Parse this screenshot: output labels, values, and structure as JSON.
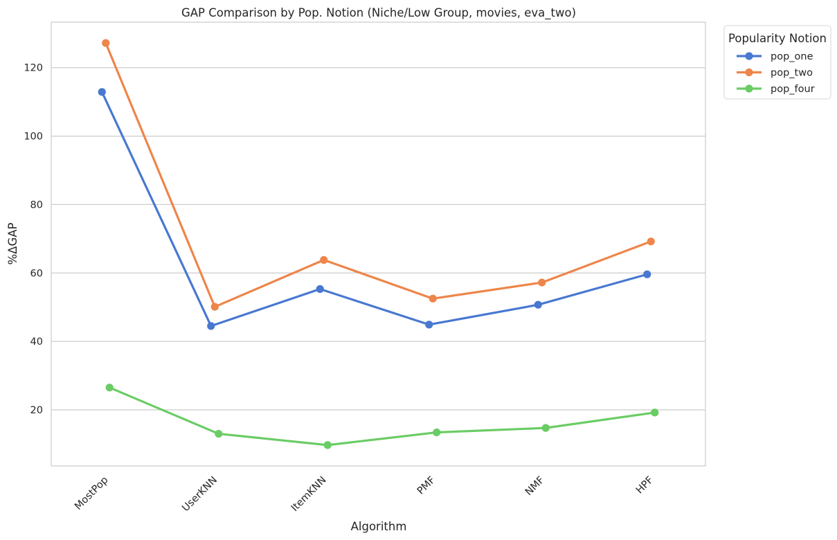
{
  "chart_data": {
    "type": "line",
    "title": "GAP Comparison by Pop. Notion (Niche/Low Group, movies, eva_two)",
    "xlabel": "Algorithm",
    "ylabel": "%ΔGAP",
    "categories": [
      "MostPop",
      "UserKNN",
      "ItemKNN",
      "PMF",
      "NMF",
      "HPF"
    ],
    "ylim": [
      3.6,
      133.3
    ],
    "yticks": [
      20,
      40,
      60,
      80,
      100,
      120
    ],
    "grid": "y",
    "legend": {
      "title": "Popularity Notion",
      "position": "outside-top-right"
    },
    "series": [
      {
        "name": "pop_one",
        "color": "#4878d0",
        "values": [
          112.9,
          44.5,
          55.3,
          44.9,
          50.7,
          59.6
        ]
      },
      {
        "name": "pop_two",
        "color": "#ee854a",
        "values": [
          127.2,
          50.1,
          63.8,
          52.5,
          57.2,
          69.2
        ]
      },
      {
        "name": "pop_four",
        "color": "#6acc64",
        "values": [
          26.5,
          13.0,
          9.7,
          13.4,
          14.7,
          19.2
        ]
      }
    ]
  }
}
